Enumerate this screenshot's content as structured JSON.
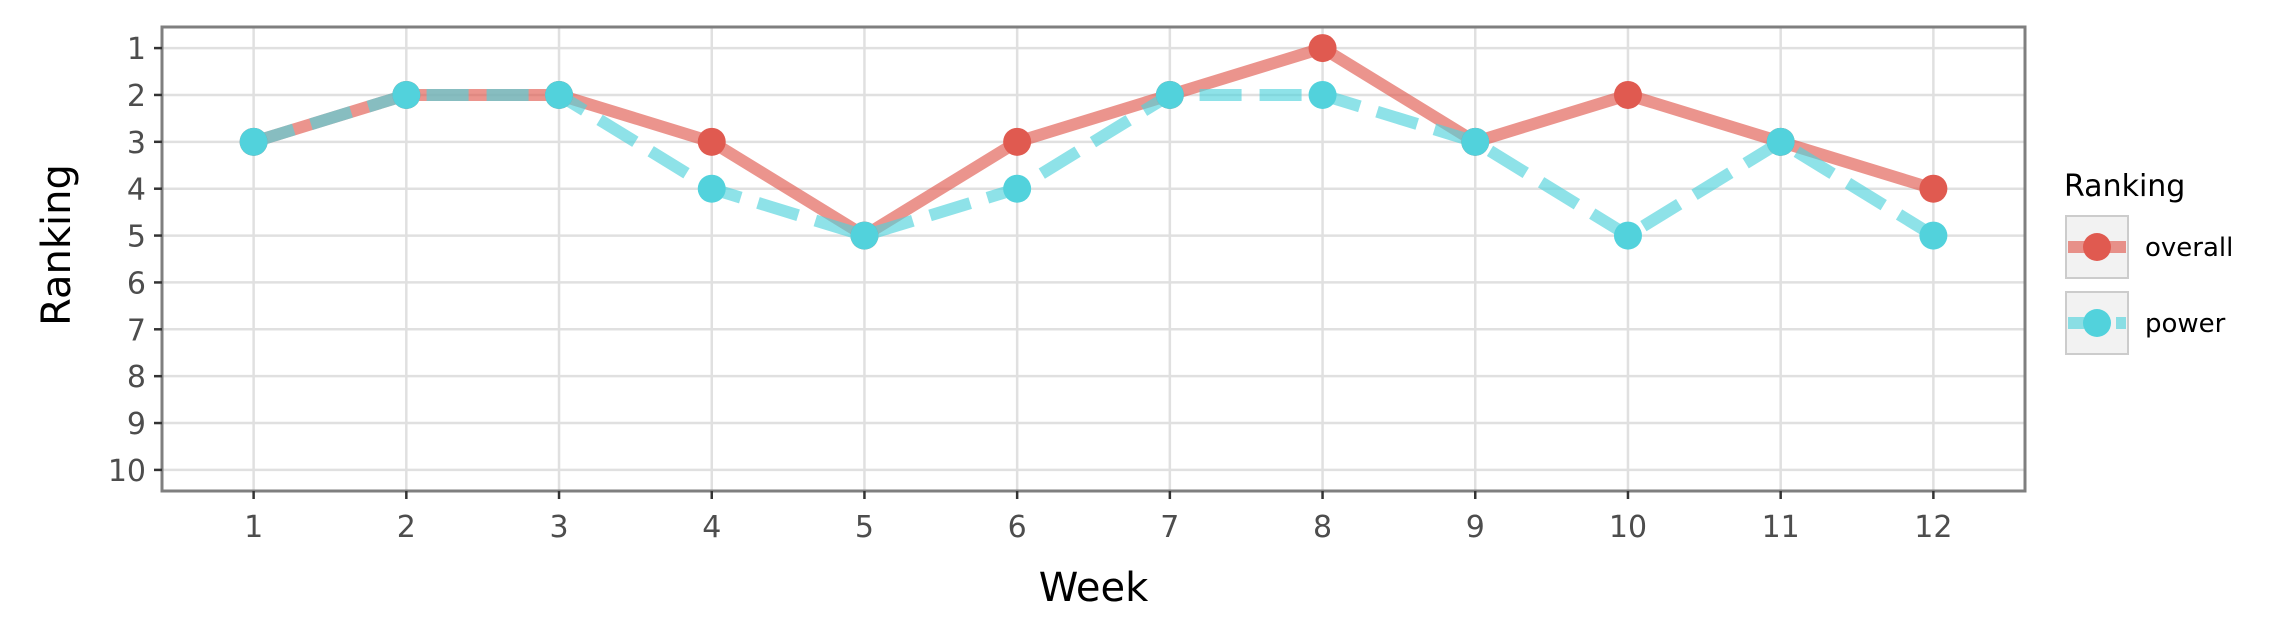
{
  "chart_data": {
    "type": "line",
    "xlabel": "Week",
    "ylabel": "Ranking",
    "x": [
      1,
      2,
      3,
      4,
      5,
      6,
      7,
      8,
      9,
      10,
      11,
      12
    ],
    "xticks": [
      "1",
      "2",
      "3",
      "4",
      "5",
      "6",
      "7",
      "8",
      "9",
      "10",
      "11",
      "12"
    ],
    "yticks": [
      "1",
      "2",
      "3",
      "4",
      "5",
      "6",
      "7",
      "8",
      "9",
      "10"
    ],
    "y_reversed": true,
    "xlim": [
      0.4,
      12.6
    ],
    "ylim": [
      0.55,
      10.45
    ],
    "grid": true,
    "legend": {
      "title": "Ranking",
      "position": "right"
    },
    "series": [
      {
        "name": "overall",
        "color": "#e05a50",
        "line_style": "solid",
        "values": [
          3,
          2,
          2,
          3,
          5,
          3,
          2,
          1,
          3,
          2,
          3,
          4
        ]
      },
      {
        "name": "power",
        "color": "#52d2dc",
        "line_style": "dashed",
        "values": [
          3,
          2,
          2,
          4,
          5,
          4,
          2,
          2,
          3,
          5,
          3,
          5
        ]
      }
    ]
  }
}
